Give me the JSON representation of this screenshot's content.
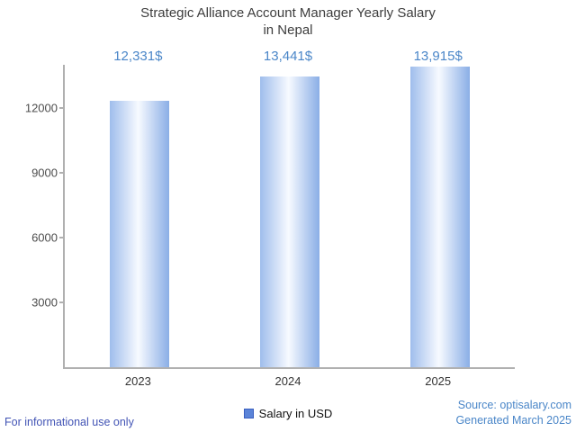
{
  "title": {
    "line1": "Strategic Alliance Account Manager Yearly Salary",
    "line2": "in Nepal"
  },
  "chart_data": {
    "type": "bar",
    "title": "Strategic Alliance Account Manager Yearly Salary in Nepal",
    "categories": [
      "2023",
      "2024",
      "2025"
    ],
    "values": [
      12331,
      13441,
      13915
    ],
    "value_labels": [
      "12,331$",
      "13,441$",
      "13,915$"
    ],
    "xlabel": "",
    "ylabel": "",
    "ylim": [
      0,
      14000
    ],
    "yticks": [
      3000,
      6000,
      9000,
      12000
    ],
    "grid": false,
    "legend_position": "bottom-center",
    "legend": [
      {
        "label": "Salary in USD",
        "color": "#5b84d8"
      }
    ],
    "bar_gradient": {
      "left": "#9fbdec",
      "mid": "#f7faff",
      "right": "#8aaee6"
    }
  },
  "footer": {
    "disclaimer": "For informational use only",
    "source": "Source: optisalary.com",
    "generated": "Generated March 2025"
  },
  "colors": {
    "value_label_blue": "#4a86c8",
    "title_gray": "#3d3d3d",
    "axis_gray": "#b0b0b0",
    "disclaimer_blue": "#4254b5"
  }
}
